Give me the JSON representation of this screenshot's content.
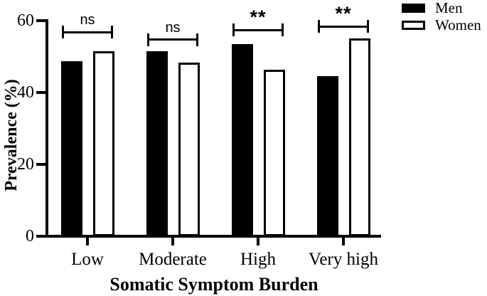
{
  "chart_data": {
    "type": "bar",
    "title": "",
    "xlabel": "Somatic Symptom Burden",
    "ylabel": "Prevalence (%)",
    "categories": [
      "Low",
      "Moderate",
      "High",
      "Very high"
    ],
    "series": [
      {
        "name": "Men",
        "fill": "#000000",
        "stroke": "#000000",
        "values": [
          48.8,
          51.5,
          53.5,
          44.6
        ]
      },
      {
        "name": "Women",
        "fill": "#ffffff",
        "stroke": "#000000",
        "values": [
          51.4,
          48.3,
          46.4,
          55.1
        ]
      }
    ],
    "ylim": [
      0,
      60
    ],
    "yticks": [
      0,
      20,
      40,
      60
    ],
    "significance": [
      {
        "category": "Low",
        "label": "ns",
        "y": 56.8
      },
      {
        "category": "Moderate",
        "label": "ns",
        "y": 54.7
      },
      {
        "category": "High",
        "label": "**",
        "y": 57.4
      },
      {
        "category": "Very high",
        "label": "**",
        "y": 58.4
      }
    ],
    "legend_position": "top-right",
    "grid": false,
    "colors": {
      "axis": "#000000",
      "background": "#ffffff"
    }
  }
}
